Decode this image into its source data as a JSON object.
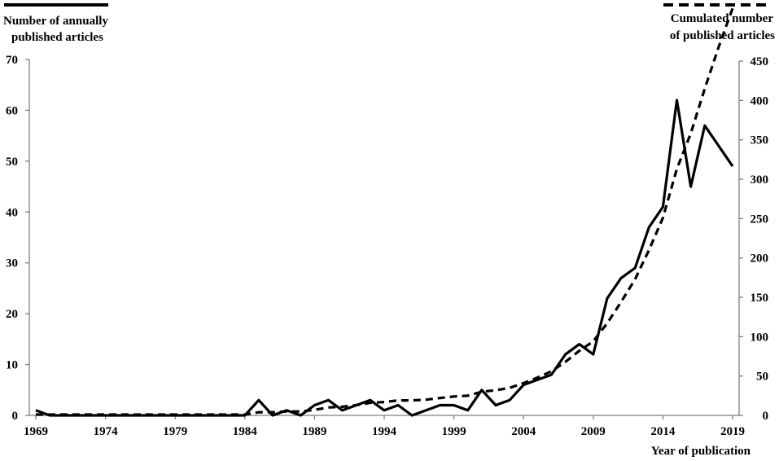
{
  "chart_data": {
    "type": "line",
    "left_legend": {
      "line1": "Number of annually",
      "line2": "published articles"
    },
    "right_legend": {
      "line1": "Cumulated number",
      "line2": "of published articles"
    },
    "xlabel": "Year of  publication",
    "x_ticks": [
      "1969",
      "1974",
      "1979",
      "1984",
      "1989",
      "1994",
      "1999",
      "2004",
      "2009",
      "2014",
      "2019"
    ],
    "y_left_ticks": [
      "0",
      "10",
      "20",
      "30",
      "40",
      "50",
      "60",
      "70"
    ],
    "y_right_ticks": [
      "0",
      "50",
      "100",
      "150",
      "200",
      "250",
      "300",
      "350",
      "400",
      "450"
    ],
    "ylim_left": [
      0,
      70
    ],
    "ylim_right": [
      0,
      450
    ],
    "xlim": [
      1969,
      2019
    ],
    "grid": false,
    "x": [
      1969,
      1970,
      1971,
      1972,
      1973,
      1974,
      1975,
      1976,
      1977,
      1978,
      1979,
      1980,
      1981,
      1982,
      1983,
      1984,
      1985,
      1986,
      1987,
      1988,
      1989,
      1990,
      1991,
      1992,
      1993,
      1994,
      1995,
      1996,
      1997,
      1998,
      1999,
      2000,
      2001,
      2002,
      2003,
      2004,
      2005,
      2006,
      2007,
      2008,
      2009,
      2010,
      2011,
      2012,
      2013,
      2014,
      2015,
      2016,
      2017,
      2018,
      2019
    ],
    "series": [
      {
        "axis": "left",
        "style": "solid",
        "color": "#000000",
        "values": [
          1,
          0,
          0,
          0,
          0,
          0,
          0,
          0,
          0,
          0,
          0,
          0,
          0,
          0,
          0,
          0,
          3,
          0,
          1,
          0,
          2,
          3,
          1,
          2,
          3,
          1,
          2,
          0,
          1,
          2,
          2,
          1,
          5,
          2,
          3,
          6,
          7,
          8,
          12,
          14,
          12,
          23,
          27,
          29,
          37,
          41,
          62,
          45,
          57,
          53,
          49
        ]
      },
      {
        "axis": "right",
        "style": "dashed",
        "color": "#000000",
        "values": [
          1,
          1,
          1,
          1,
          1,
          1,
          1,
          1,
          1,
          1,
          1,
          1,
          1,
          1,
          1,
          1,
          4,
          4,
          5,
          5,
          7,
          10,
          11,
          13,
          16,
          17,
          19,
          19,
          20,
          22,
          24,
          25,
          30,
          32,
          35,
          41,
          48,
          56,
          68,
          82,
          94,
          117,
          144,
          173,
          210,
          251,
          313,
          358,
          415,
          468,
          517
        ]
      }
    ]
  }
}
